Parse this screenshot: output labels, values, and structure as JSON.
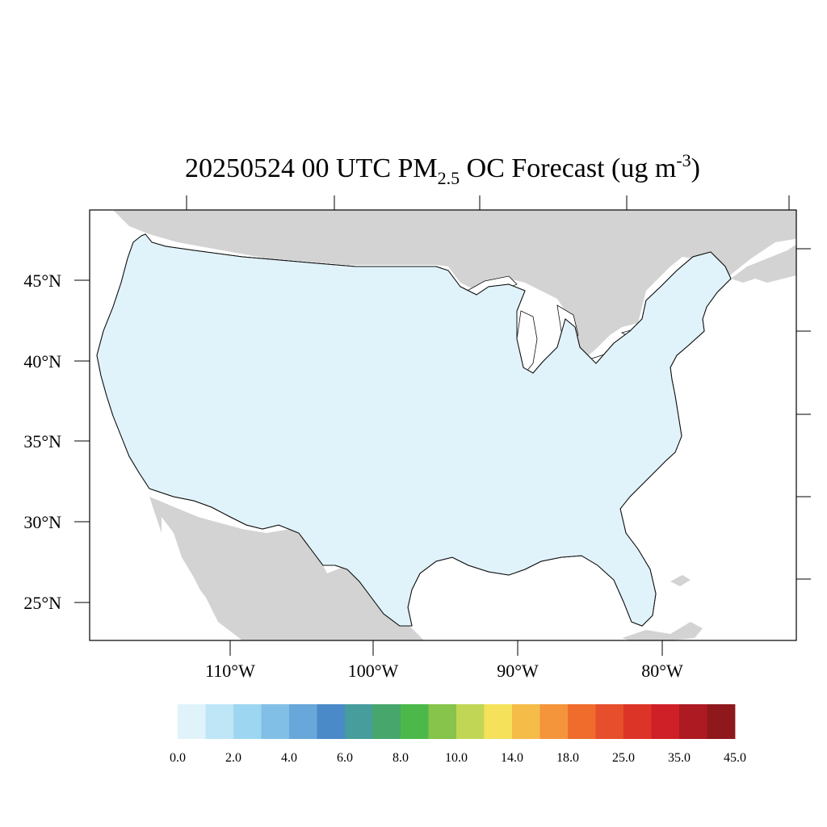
{
  "title": {
    "main_prefix": "20250524 00 UTC PM",
    "subscript": "2.5",
    "main_middle": " OC Forecast (ug m",
    "superscript": "-3",
    "main_suffix": ")"
  },
  "map": {
    "lat_labels": [
      "45°N",
      "40°N",
      "35°N",
      "30°N",
      "25°N"
    ],
    "lon_labels": [
      "110°W",
      "100°W",
      "90°W",
      "80°W"
    ],
    "land_color": "#d3d3d3",
    "water_color": "#ffffff"
  },
  "colorbar": {
    "colors": [
      "#e0f3fb",
      "#bfe6f7",
      "#9dd6f1",
      "#82bfe6",
      "#67a7da",
      "#4a8ac8",
      "#479c9c",
      "#47a66c",
      "#4cb84a",
      "#86c44c",
      "#c2d656",
      "#f5e25a",
      "#f5bc48",
      "#f4953c",
      "#ef6c2d",
      "#e64e2c",
      "#dc3427",
      "#cf1f27",
      "#ad1a22",
      "#8f181d"
    ],
    "labels": [
      "0.0",
      "2.0",
      "4.0",
      "6.0",
      "8.0",
      "10.0",
      "14.0",
      "18.0",
      "25.0",
      "35.0",
      "45.0"
    ]
  }
}
